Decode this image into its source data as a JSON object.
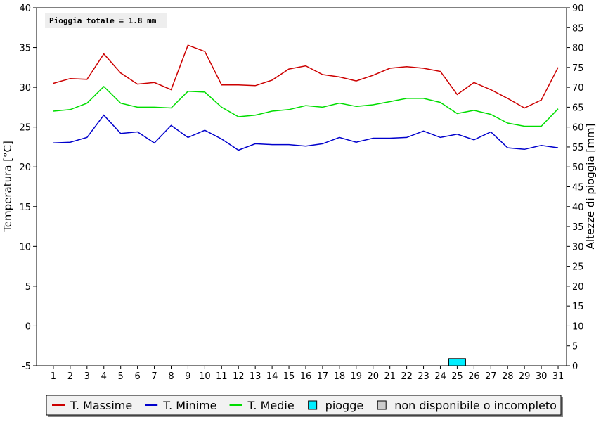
{
  "chart_data": {
    "type": "line",
    "title": "",
    "annotation": "Pioggia totale = 1.8 mm",
    "xlabel": "",
    "ylabel": "Temperatura [°C]",
    "y2label": "Altezze di pioggia [mm]",
    "ylim": [
      -5,
      40
    ],
    "y2lim": [
      0,
      90
    ],
    "yticks": [
      "-5",
      "0",
      "5",
      "10",
      "15",
      "20",
      "25",
      "30",
      "35",
      "40"
    ],
    "y2ticks": [
      "0",
      "5",
      "10",
      "15",
      "20",
      "25",
      "30",
      "35",
      "40",
      "45",
      "50",
      "55",
      "60",
      "65",
      "70",
      "75",
      "80",
      "85",
      "90"
    ],
    "categories": [
      "1",
      "2",
      "3",
      "4",
      "5",
      "6",
      "7",
      "8",
      "9",
      "10",
      "11",
      "12",
      "13",
      "14",
      "15",
      "16",
      "17",
      "18",
      "19",
      "20",
      "21",
      "22",
      "23",
      "24",
      "25",
      "26",
      "27",
      "28",
      "29",
      "30",
      "31"
    ],
    "grid": false,
    "legend_position": "bottom",
    "series": [
      {
        "name": "T. Massime",
        "color": "#cc0000",
        "values": [
          30.5,
          31.1,
          31.0,
          34.2,
          31.8,
          30.4,
          30.6,
          29.7,
          35.3,
          34.5,
          30.3,
          30.3,
          30.2,
          30.9,
          32.3,
          32.7,
          31.6,
          31.3,
          30.8,
          31.5,
          32.4,
          32.6,
          32.4,
          32.0,
          29.1,
          30.6,
          29.7,
          28.6,
          27.4,
          28.4,
          32.5
        ]
      },
      {
        "name": "T. Minime",
        "color": "#0000cc",
        "values": [
          23.0,
          23.1,
          23.7,
          26.5,
          24.2,
          24.4,
          23.0,
          25.2,
          23.7,
          24.6,
          23.5,
          22.1,
          22.9,
          22.8,
          22.8,
          22.6,
          22.9,
          23.7,
          23.1,
          23.6,
          23.6,
          23.7,
          24.5,
          23.7,
          24.1,
          23.4,
          24.4,
          22.4,
          22.2,
          22.7,
          22.4
        ]
      },
      {
        "name": "T. Medie",
        "color": "#00dd00",
        "values": [
          27.0,
          27.2,
          28.0,
          30.1,
          28.0,
          27.5,
          27.5,
          27.4,
          29.5,
          29.4,
          27.5,
          26.3,
          26.5,
          27.0,
          27.2,
          27.7,
          27.5,
          28.0,
          27.6,
          27.8,
          28.2,
          28.6,
          28.6,
          28.1,
          26.7,
          27.1,
          26.6,
          25.5,
          25.1,
          25.1,
          27.3
        ]
      }
    ],
    "rain": {
      "name": "piogge",
      "color": "#00eeff",
      "values": [
        0,
        0,
        0,
        0,
        0,
        0,
        0,
        0,
        0,
        0,
        0,
        0,
        0,
        0,
        0,
        0,
        0,
        0,
        0,
        0,
        0,
        0,
        0,
        0,
        1.8,
        0,
        0,
        0,
        0,
        0,
        0
      ]
    },
    "legend": [
      {
        "type": "line",
        "label": "T. Massime",
        "color": "#cc0000"
      },
      {
        "type": "line",
        "label": "T. Minime",
        "color": "#0000cc"
      },
      {
        "type": "line",
        "label": "T. Medie",
        "color": "#00dd00"
      },
      {
        "type": "box",
        "label": "piogge",
        "color": "#00eeff"
      },
      {
        "type": "box",
        "label": "non disponibile o incompleto",
        "color": "#cccccc"
      }
    ]
  }
}
